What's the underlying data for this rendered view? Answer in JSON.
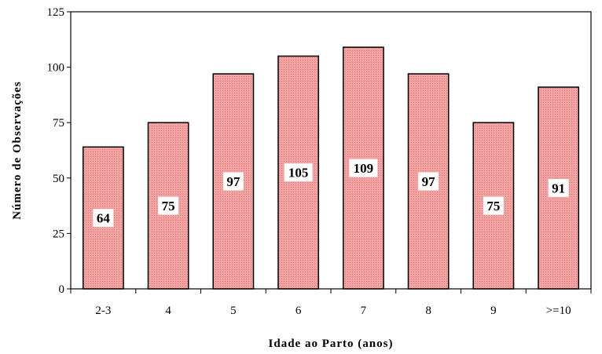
{
  "chart_data": {
    "type": "bar",
    "title": "",
    "xlabel": "Idade ao Parto (anos)",
    "ylabel": "Número de Observações",
    "categories": [
      "2-3",
      "4",
      "5",
      "6",
      "7",
      "8",
      "9",
      ">=10"
    ],
    "values": [
      64,
      75,
      97,
      105,
      109,
      97,
      75,
      91
    ],
    "data_labels": [
      "64",
      "75",
      "97",
      "105",
      "109",
      "97",
      "75",
      "91"
    ],
    "ylim": [
      0,
      125
    ],
    "yticks": [
      0,
      25,
      50,
      75,
      100,
      125
    ],
    "ytick_labels": [
      "0",
      "25",
      "50",
      "75",
      "100",
      "125"
    ],
    "grid": false,
    "legend": "none",
    "colors": {
      "bar_fill": "#f29a9a",
      "bar_stroke": "#000000",
      "label_bg": "#ffffff"
    }
  }
}
